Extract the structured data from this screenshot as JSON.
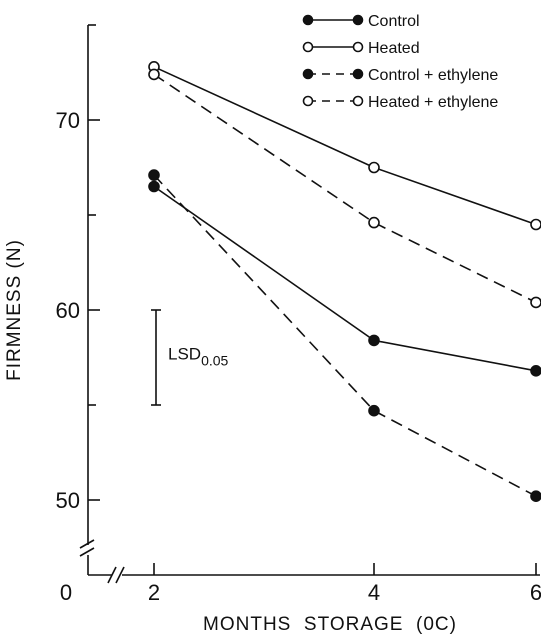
{
  "chart_data": {
    "type": "line",
    "title": "",
    "xlabel": "MONTHS  STORAGE  (0C)",
    "ylabel": "FIRMNESS (N)",
    "x": [
      2,
      4,
      6
    ],
    "xticks": [
      "2",
      "4",
      "6"
    ],
    "x_axis_break_label": "0",
    "yticks": [
      "50",
      "60",
      "70"
    ],
    "ylim": [
      46,
      75
    ],
    "xlim": [
      0,
      6
    ],
    "grid": false,
    "legend_position": "top-right",
    "series": [
      {
        "name": "Control",
        "values": [
          66.5,
          58.4,
          56.8
        ],
        "line_style": "solid",
        "marker": "filled-circle",
        "color": "#111111"
      },
      {
        "name": "Heated",
        "values": [
          72.8,
          67.5,
          64.5
        ],
        "line_style": "solid",
        "marker": "open-circle",
        "color": "#111111"
      },
      {
        "name": "Control + ethylene",
        "values": [
          67.1,
          54.7,
          50.2
        ],
        "line_style": "dashed",
        "marker": "filled-circle",
        "color": "#111111"
      },
      {
        "name": "Heated + ethylene",
        "values": [
          72.4,
          64.6,
          60.4
        ],
        "line_style": "dashed",
        "marker": "open-circle",
        "color": "#111111"
      }
    ],
    "lsd": {
      "label": "LSD",
      "subscript": "0.05",
      "low": 55.0,
      "high": 60.0
    }
  }
}
